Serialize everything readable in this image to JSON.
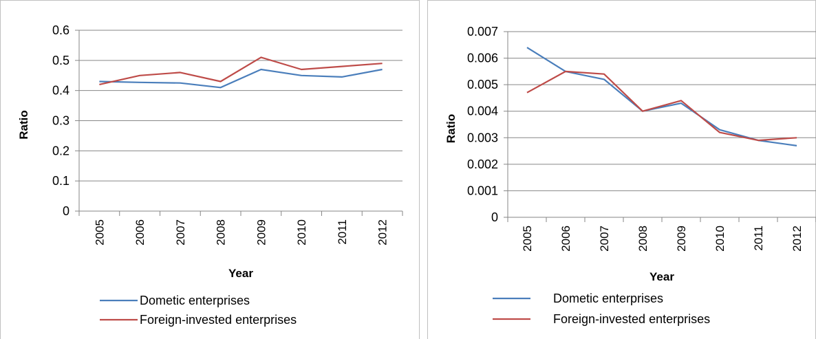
{
  "chart_data": [
    {
      "type": "line",
      "categories": [
        "2005",
        "2006",
        "2007",
        "2008",
        "2009",
        "2010",
        "2011",
        "2012"
      ],
      "series": [
        {
          "name": "Dometic enterprises",
          "color": "#4a7ebb",
          "values": [
            0.43,
            0.427,
            0.425,
            0.41,
            0.47,
            0.45,
            0.445,
            0.47
          ]
        },
        {
          "name": "Foreign-invested enterprises",
          "color": "#be4b48",
          "values": [
            0.42,
            0.45,
            0.46,
            0.43,
            0.51,
            0.47,
            0.48,
            0.49
          ]
        }
      ],
      "xlabel": "Year",
      "ylabel": "Ratio",
      "ylim": [
        0,
        0.6
      ],
      "yticks": [
        "0",
        "0.1",
        "0.2",
        "0.3",
        "0.4",
        "0.5",
        "0.6"
      ],
      "grid": true,
      "legend": "bottom"
    },
    {
      "type": "line",
      "categories": [
        "2005",
        "2006",
        "2007",
        "2008",
        "2009",
        "2010",
        "2011",
        "2012"
      ],
      "series": [
        {
          "name": "Dometic enterprises",
          "color": "#4a7ebb",
          "values": [
            0.0064,
            0.0055,
            0.0052,
            0.004,
            0.0043,
            0.0033,
            0.0029,
            0.0027
          ]
        },
        {
          "name": "Foreign-invested enterprises",
          "color": "#be4b48",
          "values": [
            0.0047,
            0.0055,
            0.0054,
            0.004,
            0.0044,
            0.0032,
            0.0029,
            0.003
          ]
        }
      ],
      "xlabel": "Year",
      "ylabel": "Ratio",
      "ylim": [
        0,
        0.007
      ],
      "yticks": [
        "0",
        "0.001",
        "0.002",
        "0.003",
        "0.004",
        "0.005",
        "0.006",
        "0.007"
      ],
      "grid": true,
      "legend": "bottom"
    }
  ]
}
